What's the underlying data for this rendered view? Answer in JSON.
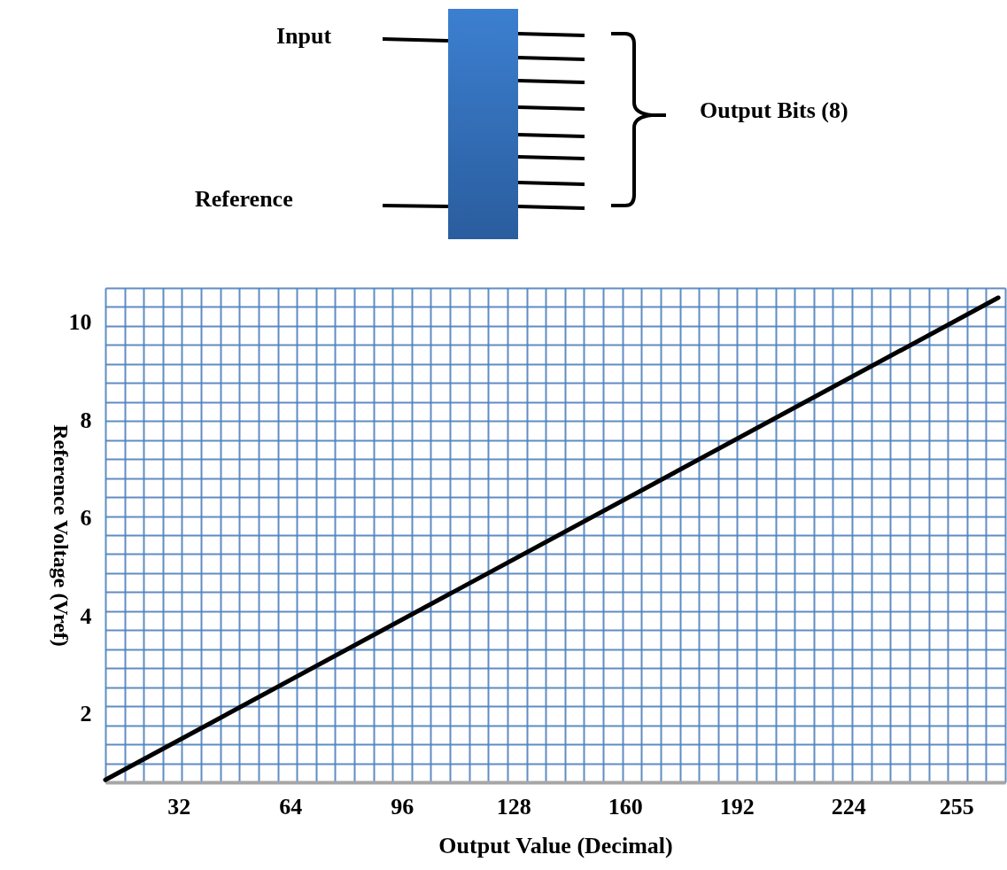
{
  "chart_data": {
    "type": "line",
    "xlabel": "Output Value (Decimal)",
    "ylabel": "Reference Voltage (Vref)",
    "annotations": [
      "Input",
      "Reference",
      "Output Bits (8)"
    ],
    "xlim": [
      11,
      269
    ],
    "ylim": [
      0.6,
      10.7
    ],
    "xticks": [
      32,
      64,
      96,
      128,
      160,
      192,
      224,
      255
    ],
    "yticks": [
      2,
      4,
      6,
      8,
      10
    ],
    "grid": true,
    "marker": "none",
    "line_style": "solid",
    "series": [
      {
        "color": "#000000",
        "x": [
          11,
          267
        ],
        "values": [
          0.65,
          10.5
        ]
      }
    ]
  }
}
